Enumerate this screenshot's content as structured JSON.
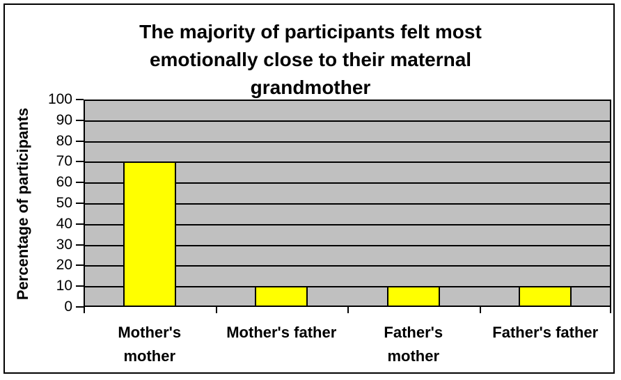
{
  "chart_data": {
    "type": "bar",
    "title": "The majority of participants felt most emotionally close to their maternal grandmother",
    "title_lines": [
      "The majority of participants felt most",
      "emotionally close to their maternal",
      "grandmother"
    ],
    "categories": [
      "Mother's mother",
      "Mother's father",
      "Father's mother",
      "Father's father"
    ],
    "category_label_lines": [
      [
        "Mother's",
        "mother"
      ],
      [
        "Mother's father"
      ],
      [
        "Father's",
        "mother"
      ],
      [
        "Father's father"
      ]
    ],
    "values": [
      70,
      10,
      10,
      10
    ],
    "xlabel": "",
    "ylabel": "Percentage of participants",
    "ylim": [
      0,
      100
    ],
    "yticks": [
      100,
      90,
      80,
      70,
      60,
      50,
      40,
      30,
      20,
      10,
      0
    ],
    "grid": true,
    "legend": "none",
    "colors": {
      "bar_fill": "#ffff00",
      "bar_border": "#000000",
      "plot_background": "#c0c0c0",
      "gridline": "#000000",
      "page_background": "#ffffff",
      "text": "#000000",
      "frame_border": "#000000"
    }
  }
}
